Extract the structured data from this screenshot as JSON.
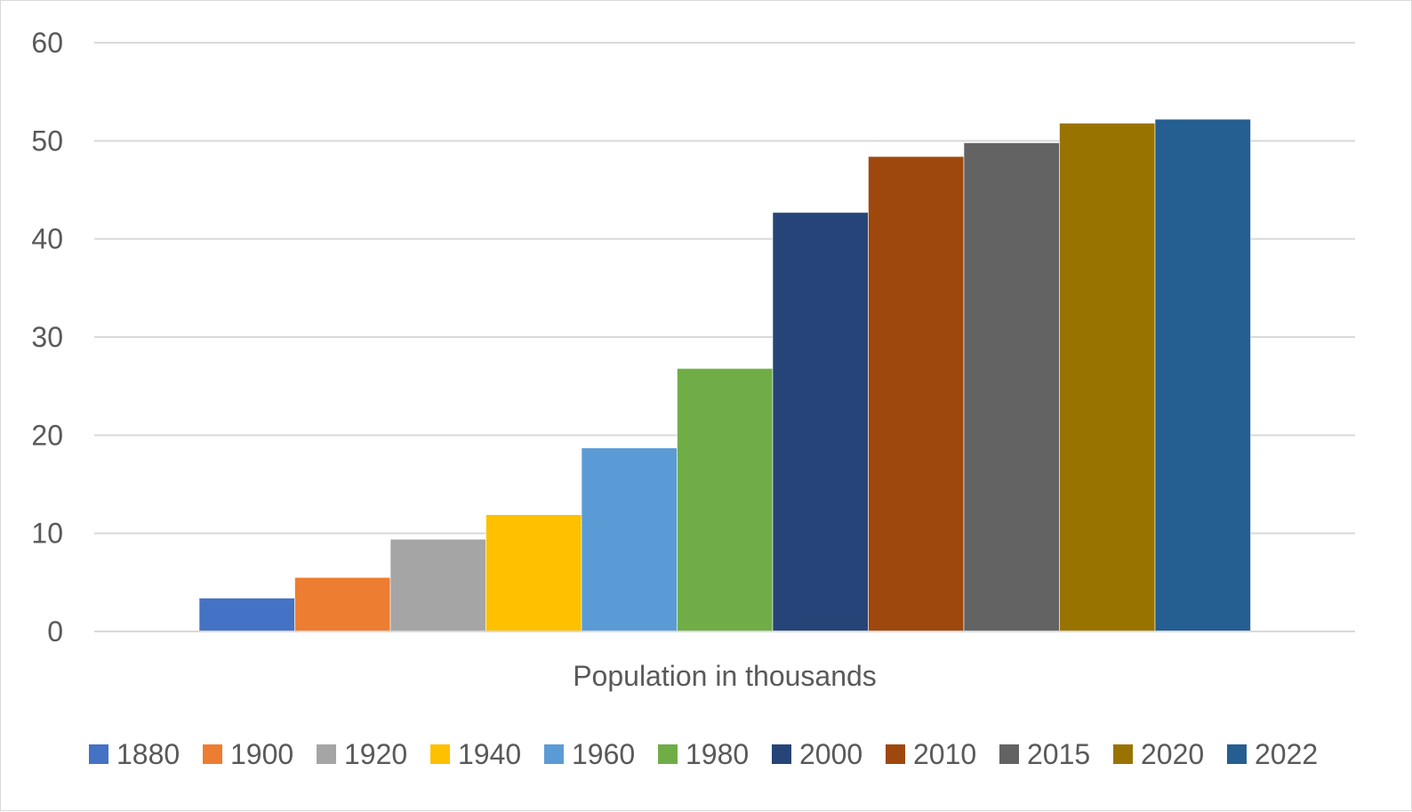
{
  "chart_data": {
    "type": "bar",
    "title": "",
    "xlabel": "Population in thousands",
    "ylabel": "",
    "ylim": [
      0,
      60
    ],
    "yticks": [
      0,
      10,
      20,
      30,
      40,
      50,
      60
    ],
    "grid": true,
    "legend_position": "bottom",
    "series": [
      {
        "name": "1880",
        "values": [
          3.4
        ],
        "color": "#4472C4"
      },
      {
        "name": "1900",
        "values": [
          5.5
        ],
        "color": "#ED7D31"
      },
      {
        "name": "1920",
        "values": [
          9.4
        ],
        "color": "#A5A5A5"
      },
      {
        "name": "1940",
        "values": [
          11.9
        ],
        "color": "#FFC000"
      },
      {
        "name": "1960",
        "values": [
          18.7
        ],
        "color": "#5B9BD5"
      },
      {
        "name": "1980",
        "values": [
          26.8
        ],
        "color": "#70AD47"
      },
      {
        "name": "2000",
        "values": [
          42.7
        ],
        "color": "#264478"
      },
      {
        "name": "2010",
        "values": [
          48.4
        ],
        "color": "#9E480E"
      },
      {
        "name": "2015",
        "values": [
          49.8
        ],
        "color": "#636363"
      },
      {
        "name": "2020",
        "values": [
          51.8
        ],
        "color": "#997300"
      },
      {
        "name": "2022",
        "values": [
          52.2
        ],
        "color": "#255E91"
      }
    ]
  }
}
